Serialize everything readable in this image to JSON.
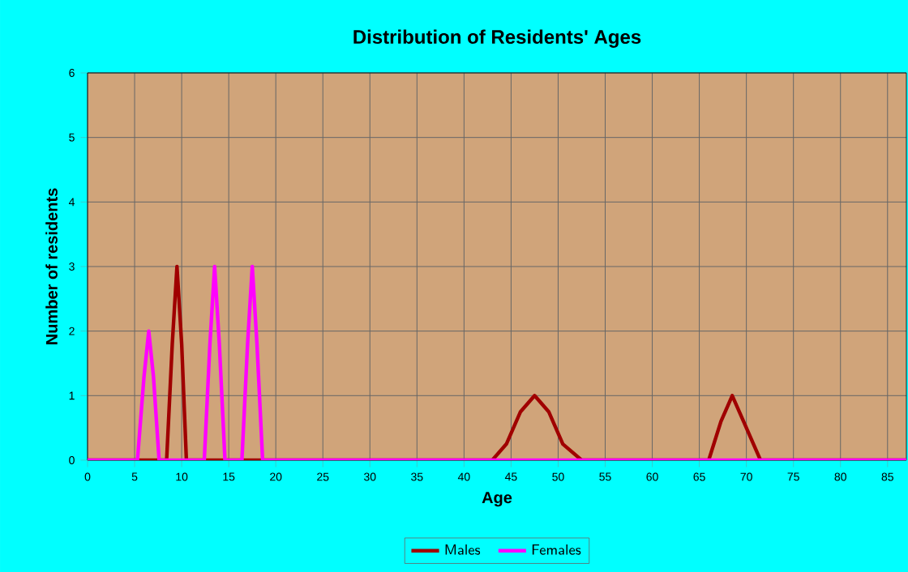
{
  "chart_data": {
    "type": "line",
    "title": "Distribution of Residents' Ages",
    "xlabel": "Age",
    "ylabel": "Number of residents",
    "xlim": [
      0,
      87
    ],
    "ylim": [
      0,
      6
    ],
    "xticks": [
      0,
      5,
      10,
      15,
      20,
      25,
      30,
      35,
      40,
      45,
      50,
      55,
      60,
      65,
      70,
      75,
      80,
      85
    ],
    "yticks": [
      0,
      1,
      2,
      3,
      4,
      5,
      6
    ],
    "grid": true,
    "legend": "bottom",
    "marker": "none",
    "line_style": "solid",
    "series": [
      {
        "name": "Males",
        "color": "#a00000",
        "x": [
          0,
          8.4,
          9.0,
          9.5,
          10.0,
          10.5,
          43,
          44.5,
          46,
          47.5,
          49,
          50.5,
          52.5,
          66,
          67.3,
          68.5,
          69.7,
          71.5,
          87
        ],
        "values": [
          0,
          0,
          1.8,
          3,
          1.8,
          0,
          0,
          0.25,
          0.75,
          1,
          0.75,
          0.25,
          0,
          0,
          0.6,
          1,
          0.6,
          0,
          0
        ]
      },
      {
        "name": "Females",
        "color": "#ff00ff",
        "x": [
          0,
          5.3,
          6.0,
          6.5,
          7.0,
          7.6,
          12.4,
          13.0,
          13.5,
          14.0,
          14.6,
          16.4,
          17.0,
          17.5,
          18.0,
          18.6,
          87
        ],
        "values": [
          0,
          0,
          1.3,
          2,
          1.3,
          0,
          0,
          1.8,
          3,
          1.8,
          0,
          0,
          1.8,
          3,
          1.8,
          0,
          0
        ]
      }
    ]
  }
}
